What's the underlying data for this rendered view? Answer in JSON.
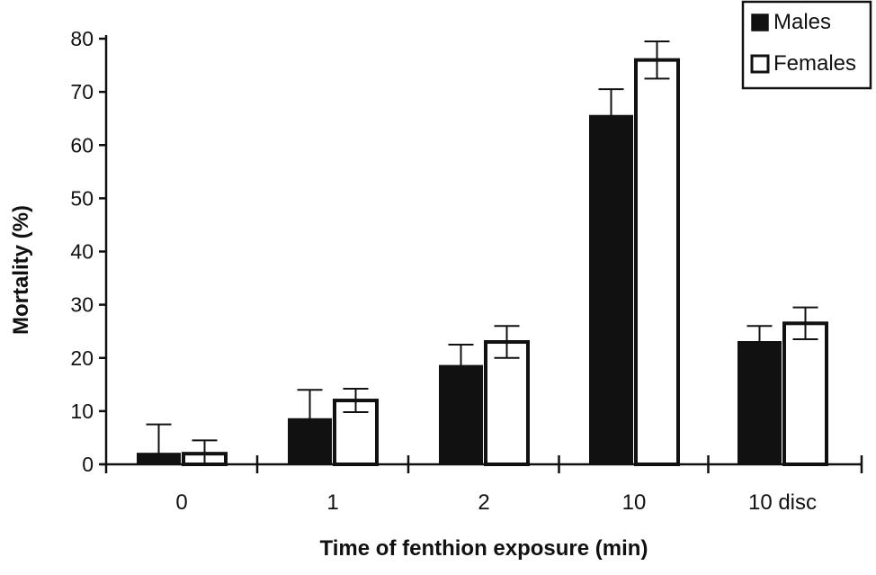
{
  "chart_data": {
    "type": "bar",
    "title": "",
    "xlabel": "Time of fenthion exposure (min)",
    "ylabel": "Mortality (%)",
    "categories": [
      "0",
      "1",
      "2",
      "10",
      "10 disc"
    ],
    "ylim": [
      0,
      80
    ],
    "yticks": [
      "0",
      "10",
      "20",
      "30",
      "40",
      "50",
      "60",
      "70",
      "80"
    ],
    "grid": false,
    "legend_position": "top-right",
    "series": [
      {
        "name": "Males",
        "color": "#111111",
        "fill": "solid",
        "values": [
          2,
          8.5,
          18.5,
          65.5,
          23
        ],
        "errors": [
          5.5,
          5.5,
          4,
          5,
          3
        ]
      },
      {
        "name": "Females",
        "color": "#ffffff",
        "fill": "hollow",
        "values": [
          2,
          12,
          23,
          76,
          26.5
        ],
        "errors": [
          2.5,
          2.2,
          3,
          3.5,
          3
        ]
      }
    ]
  }
}
